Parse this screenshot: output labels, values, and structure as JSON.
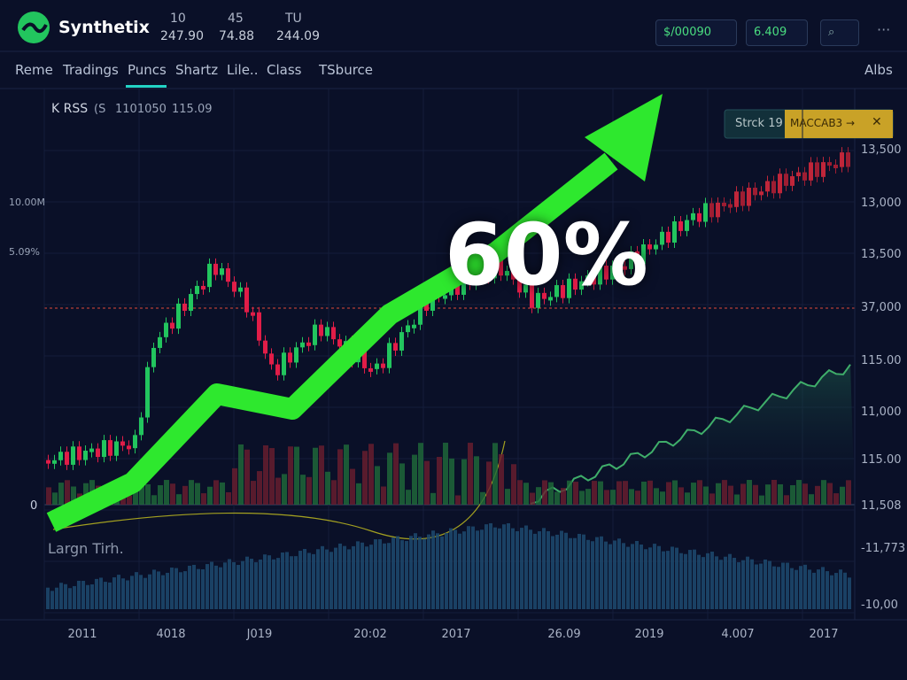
{
  "header": {
    "logo": "Synthetix",
    "stats": [
      {
        "top": "10",
        "bottom": "247.90"
      },
      {
        "top": "45",
        "bottom": "74.88"
      },
      {
        "top": "TU",
        "bottom": "244.09"
      }
    ],
    "buttons": [
      "$/00090",
      "6.409"
    ]
  },
  "nav": {
    "items": [
      "Reme",
      "Tradings",
      "Puncs",
      "Shartz",
      "Lile..",
      "Class",
      "TSburce"
    ],
    "right": "Albs"
  },
  "chart": {
    "symbol": "K RSS",
    "info": [
      "(S",
      "1101050",
      "115.09"
    ],
    "side_labels": [
      "10.00M",
      "5.09%"
    ],
    "zero": "0",
    "headline": "60%",
    "panel": {
      "label": "Strck 19",
      "action": "MACCAB3 →",
      "close": "✕"
    },
    "right_axis": [
      "13,500",
      "13,000",
      "13,500",
      "37,000",
      "115.00",
      "11,000",
      "115.00",
      "11,508",
      "-11,773",
      "-10,00"
    ],
    "lower_title": "Largn Tirh.",
    "x_labels": [
      "2011",
      "4018",
      "J019",
      "20:02",
      "2017",
      "26.09",
      "2019",
      "4.007",
      "2017"
    ]
  }
}
